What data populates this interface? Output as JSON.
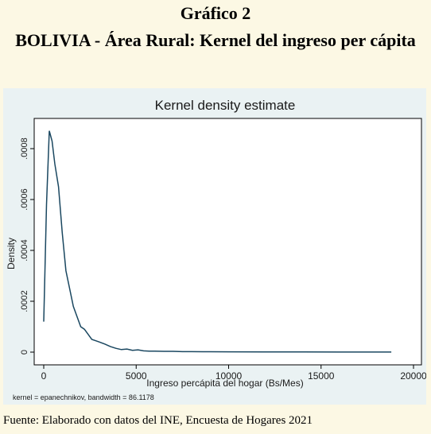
{
  "figure": {
    "number": "Gráfico 2",
    "title": "BOLIVIA - Área Rural: Kernel del ingreso per cápita",
    "source": "Fuente: Elaborado con datos del INE, Encuesta de Hogares 2021"
  },
  "chart_data": {
    "type": "line",
    "title": "Kernel density estimate",
    "xlabel": "Ingreso percápita del hogar (Bs/Mes)",
    "ylabel": "Density",
    "note": "kernel = epanechnikov, bandwidth = 86.1178",
    "xlim": [
      0,
      20000
    ],
    "ylim": [
      0,
      0.0009
    ],
    "xticks": [
      0,
      5000,
      10000,
      15000,
      20000
    ],
    "xtick_labels": [
      "0",
      "5000",
      "10000",
      "15000",
      "20000"
    ],
    "yticks": [
      0,
      0.0002,
      0.0004,
      0.0006,
      0.0008
    ],
    "ytick_labels": [
      "0",
      ".0002",
      ".0004",
      ".0006",
      ".0008"
    ],
    "grid": false,
    "line_color": "#1a4760",
    "series": [
      {
        "x": [
          0,
          150,
          300,
          450,
          600,
          800,
          1000,
          1200,
          1400,
          1600,
          1800,
          2000,
          2200,
          2400,
          2600,
          2800,
          3000,
          3300,
          3600,
          3900,
          4200,
          4500,
          4800,
          5100,
          5400,
          5700,
          6000,
          6500,
          7000,
          7500,
          8000,
          9000,
          10000,
          12000,
          14000,
          16000,
          18800
        ],
        "y": [
          0.00012,
          0.00058,
          0.00087,
          0.00083,
          0.00074,
          0.00065,
          0.00047,
          0.00032,
          0.00025,
          0.00018,
          0.00014,
          0.0001,
          9e-05,
          7e-05,
          5e-05,
          4.5e-05,
          4e-05,
          3.2e-05,
          2.2e-05,
          1.5e-05,
          1e-05,
          1.2e-05,
          7e-06,
          9e-06,
          5e-06,
          4e-06,
          4e-06,
          3e-06,
          3e-06,
          2e-06,
          2e-06,
          1.5e-06,
          1e-06,
          8e-07,
          6e-07,
          5e-07,
          4e-07
        ]
      }
    ]
  }
}
